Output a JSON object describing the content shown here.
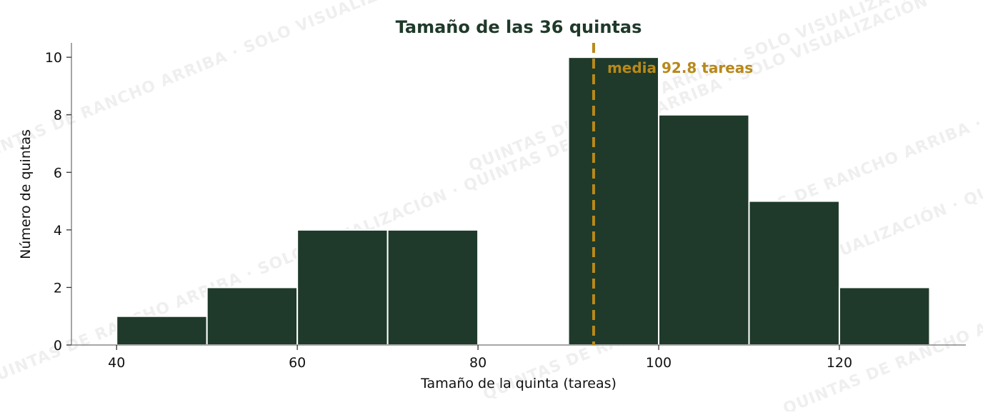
{
  "chart_data": {
    "type": "bar",
    "title": "Tamaño de las 36 quintas",
    "xlabel": "Tamaño de la quinta (tareas)",
    "ylabel": "Número de quintas",
    "bins": [
      {
        "x0": 40,
        "x1": 50,
        "count": 1
      },
      {
        "x0": 50,
        "x1": 60,
        "count": 2
      },
      {
        "x0": 60,
        "x1": 70,
        "count": 4
      },
      {
        "x0": 70,
        "x1": 80,
        "count": 4
      },
      {
        "x0": 80,
        "x1": 90,
        "count": 0
      },
      {
        "x0": 90,
        "x1": 100,
        "count": 10
      },
      {
        "x0": 100,
        "x1": 110,
        "count": 8
      },
      {
        "x0": 110,
        "x1": 120,
        "count": 5
      },
      {
        "x0": 120,
        "x1": 130,
        "count": 2
      }
    ],
    "xlim": [
      35,
      134
    ],
    "ylim": [
      0,
      10.5
    ],
    "xticks": [
      40,
      60,
      80,
      100,
      120
    ],
    "yticks": [
      0,
      2,
      4,
      6,
      8,
      10
    ],
    "mean_line": {
      "value": 92.8,
      "label": "media 92.8 tareas",
      "style": "dashed"
    },
    "grid": false,
    "colors": {
      "bar_fill": "#1f3a2a",
      "bar_edge": "#ffffff",
      "mean_line": "#b8891a",
      "title": "#1f3a2a",
      "axis": "#888888"
    }
  },
  "watermark": {
    "text": "QUINTAS DE RANCHO ARRIBA · SOLO VISUALIZACIÓN"
  }
}
